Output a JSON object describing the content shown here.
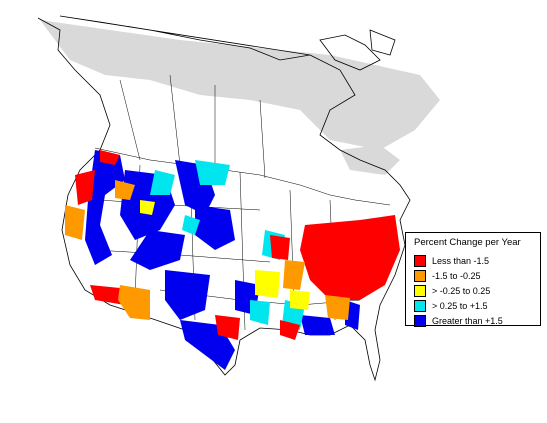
{
  "legend": {
    "title": "Percent Change per Year",
    "items": [
      {
        "label": "Less than -1.5",
        "color": "#ff0000"
      },
      {
        "label": "-1.5 to -0.25",
        "color": "#ff9900"
      },
      {
        "label": "> -0.25 to 0.25",
        "color": "#ffff00"
      },
      {
        "label": "> 0.25 to +1.5",
        "color": "#00e5ee"
      },
      {
        "label": "Greater than +1.5",
        "color": "#0000ee"
      }
    ]
  },
  "colors": {
    "no_data_region": "#d9d9d9",
    "land": "#ffffff",
    "boundary": "#000000"
  }
}
